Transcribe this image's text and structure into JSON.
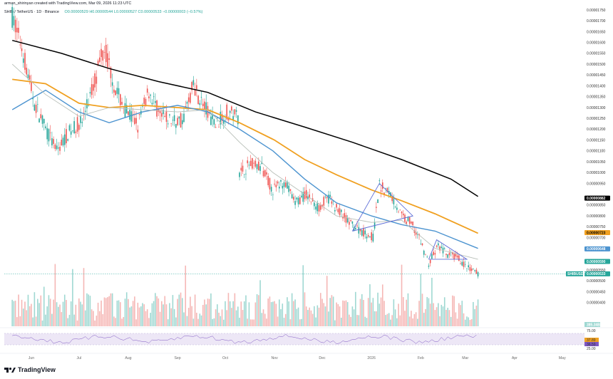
{
  "header": {
    "author_line": "arman_shirinyan created with TradingView.com, Mar 09, 2026 11:23 UTC",
    "symbol_line": "SHIB / TetherUS · 1D · Binance",
    "ohlc": "O0.00000529 H0.00000544 L0.00000527 C0.00000533 −0.00000003 (−0.57%)"
  },
  "logo": {
    "text": "TradingView"
  },
  "colors": {
    "up": "#26a69a",
    "down": "#ef5350",
    "ma_black": "#000000",
    "ma_orange": "#f0a020",
    "ma_blue": "#4d94d0",
    "ma_gray": "#b8bfb8",
    "rsi": "#7e57c2",
    "triangle": "#5b6bd6"
  },
  "chart_data": {
    "type": "line",
    "title": "SHIB / TetherUS · 1D · Binance",
    "xlabel": "",
    "ylabel": "",
    "ylim": [
      3.5e-06,
      1.77e-05
    ],
    "x_ticks": [
      "Jun",
      "Jul",
      "Aug",
      "Sep",
      "Oct",
      "Nov",
      "Dec",
      "2026",
      "Feb",
      "Mar",
      "Apr",
      "May"
    ],
    "y_ticks": [
      "0.00001750",
      "0.00001700",
      "0.00001650",
      "0.00001600",
      "0.00001550",
      "0.00001500",
      "0.00001450",
      "0.00001400",
      "0.00001350",
      "0.00001300",
      "0.00001250",
      "0.00001200",
      "0.00001150",
      "0.00001100",
      "0.00001050",
      "0.00001000",
      "0.00000950",
      "0.00000850",
      "0.00000800",
      "0.00000750",
      "0.00000700",
      "0.00000650",
      "0.00000550",
      "0.00000500",
      "0.00000450",
      "0.00000400"
    ],
    "series": [
      {
        "key": "price",
        "x": [
          "2025-05-20",
          "2025-05-26",
          "2025-06-03",
          "2025-06-10",
          "2025-06-17",
          "2025-06-24",
          "2025-07-03",
          "2025-07-10",
          "2025-07-17",
          "2025-07-24",
          "2025-07-31",
          "2025-08-07",
          "2025-08-14",
          "2025-08-21",
          "2025-08-28",
          "2025-09-04",
          "2025-09-11",
          "2025-09-18",
          "2025-09-25",
          "2025-10-02",
          "2025-10-09",
          "2025-10-10",
          "2025-10-17",
          "2025-10-24",
          "2025-10-31",
          "2025-11-07",
          "2025-11-14",
          "2025-11-21",
          "2025-11-28",
          "2025-12-05",
          "2025-12-12",
          "2025-12-19",
          "2025-12-26",
          "2026-01-02",
          "2026-01-06",
          "2026-01-13",
          "2026-01-20",
          "2026-01-27",
          "2026-02-01",
          "2026-02-06",
          "2026-02-12",
          "2026-02-18",
          "2026-02-24",
          "2026-03-02",
          "2026-03-09"
        ],
        "values": [
          1.72e-05,
          1.58e-05,
          1.32e-05,
          1.2e-05,
          1.1e-05,
          1.18e-05,
          1.24e-05,
          1.4e-05,
          1.58e-05,
          1.38e-05,
          1.28e-05,
          1.22e-05,
          1.38e-05,
          1.26e-05,
          1.24e-05,
          1.24e-05,
          1.4e-05,
          1.3e-05,
          1.22e-05,
          1.28e-05,
          1.26e-05,
          1e-05,
          1.04e-05,
          1.02e-05,
          9.2e-06,
          9.6e-06,
          8.6e-06,
          9e-06,
          8.4e-06,
          8.8e-06,
          8.2e-06,
          7.6e-06,
          7.3e-06,
          7e-06,
          9.4e-06,
          9e-06,
          8e-06,
          7.6e-06,
          6.8e-06,
          5.8e-06,
          6.6e-06,
          6.2e-06,
          6.1e-06,
          5.6e-06,
          5.33e-06
        ]
      },
      {
        "key": "ma_black",
        "x": [
          "2025-05-20",
          "2025-06-20",
          "2025-07-20",
          "2025-08-20",
          "2025-09-20",
          "2025-10-20",
          "2025-11-20",
          "2025-12-20",
          "2026-01-20",
          "2026-02-20",
          "2026-03-09"
        ],
        "values": [
          1.61e-05,
          1.55e-05,
          1.48e-05,
          1.42e-05,
          1.37e-05,
          1.28e-05,
          1.21e-05,
          1.14e-05,
          1.06e-05,
          9.7e-06,
          8.9e-06
        ]
      },
      {
        "key": "ma_orange",
        "x": [
          "2025-05-20",
          "2025-06-10",
          "2025-07-01",
          "2025-07-20",
          "2025-08-10",
          "2025-09-01",
          "2025-09-20",
          "2025-10-10",
          "2025-11-01",
          "2025-11-20",
          "2025-12-10",
          "2026-01-01",
          "2026-01-20",
          "2026-02-10",
          "2026-03-09"
        ],
        "values": [
          1.43e-05,
          1.41e-05,
          1.32e-05,
          1.3e-05,
          1.31e-05,
          1.3e-05,
          1.29e-05,
          1.23e-05,
          1.15e-05,
          1.06e-05,
          9.9e-06,
          9.2e-06,
          8.7e-06,
          8.1e-06,
          7.2e-06
        ]
      },
      {
        "key": "ma_blue",
        "x": [
          "2025-05-20",
          "2025-06-10",
          "2025-07-01",
          "2025-07-20",
          "2025-08-10",
          "2025-09-01",
          "2025-09-20",
          "2025-10-10",
          "2025-10-31",
          "2025-11-20",
          "2025-12-10",
          "2026-01-01",
          "2026-01-20",
          "2026-02-10",
          "2026-03-09"
        ],
        "values": [
          1.29e-05,
          1.38e-05,
          1.28e-05,
          1.23e-05,
          1.28e-05,
          1.31e-05,
          1.28e-05,
          1.2e-05,
          1.1e-05,
          9.7e-06,
          8.6e-06,
          8e-06,
          7.6e-06,
          7.3e-06,
          6.5e-06
        ]
      },
      {
        "key": "ma_gray",
        "x": [
          "2025-05-20",
          "2025-06-10",
          "2025-07-01",
          "2025-07-20",
          "2025-08-10",
          "2025-09-01",
          "2025-09-20",
          "2025-10-10",
          "2025-10-31",
          "2025-11-20",
          "2025-12-10",
          "2026-01-01",
          "2026-01-20",
          "2026-02-10",
          "2026-03-09"
        ],
        "values": [
          1.5e-05,
          1.36e-05,
          1.26e-05,
          1.3e-05,
          1.29e-05,
          1.28e-05,
          1.29e-05,
          1.14e-05,
          1e-05,
          9e-06,
          8e-06,
          7.7e-06,
          7.8e-06,
          6.5e-06,
          6e-06
        ]
      }
    ],
    "price_labels": [
      {
        "value": 8.82e-06,
        "text": "0.00000882",
        "bg": "#000000",
        "fg": "#ffffff"
      },
      {
        "value": 7.23e-06,
        "text": "0.00000723",
        "bg": "#f0a020",
        "fg": "#000000"
      },
      {
        "value": 6.48e-06,
        "text": "0.00000648",
        "bg": "#4d94d0",
        "fg": "#ffffff"
      },
      {
        "value": 5.9e-06,
        "text": "0.00000590",
        "bg": "#26a69a",
        "fg": "#ffffff"
      },
      {
        "value": 5.33e-06,
        "text": "0.00000533",
        "bg": "#26a69a",
        "fg": "#ffffff"
      }
    ],
    "current_symbol_tag": "SHIBUSDT",
    "volume_label": "385.34B",
    "rsi_ticks": [
      "75.00",
      "37.89",
      "36.59",
      "25.00"
    ],
    "grid": false,
    "legend": "none"
  }
}
